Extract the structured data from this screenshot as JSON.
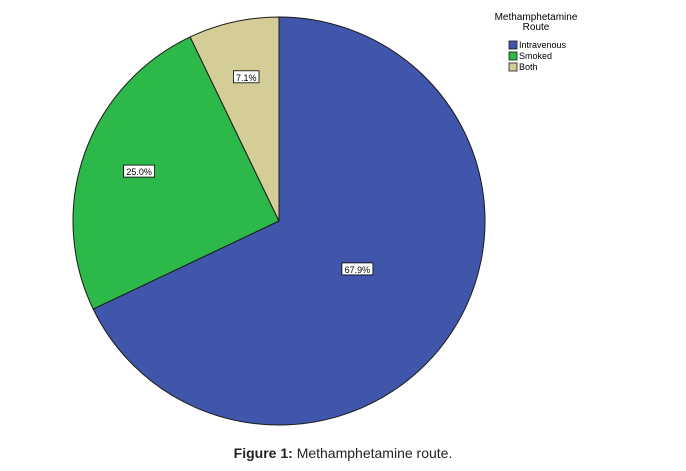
{
  "caption": {
    "label": "Figure 1:",
    "text": "Methamphetamine route."
  },
  "chart_data": {
    "type": "pie",
    "legend": {
      "title_lines": [
        "Methamphetamine",
        "Route"
      ],
      "position": "top-right"
    },
    "slices": [
      {
        "name": "Intravenous",
        "value": 67.9,
        "label": "67.9%",
        "color": "#3f56ab"
      },
      {
        "name": "Smoked",
        "value": 25.0,
        "label": "25.0%",
        "color": "#2db84a"
      },
      {
        "name": "Both",
        "value": 7.1,
        "label": "7.1%",
        "color": "#d5cd98"
      }
    ]
  }
}
